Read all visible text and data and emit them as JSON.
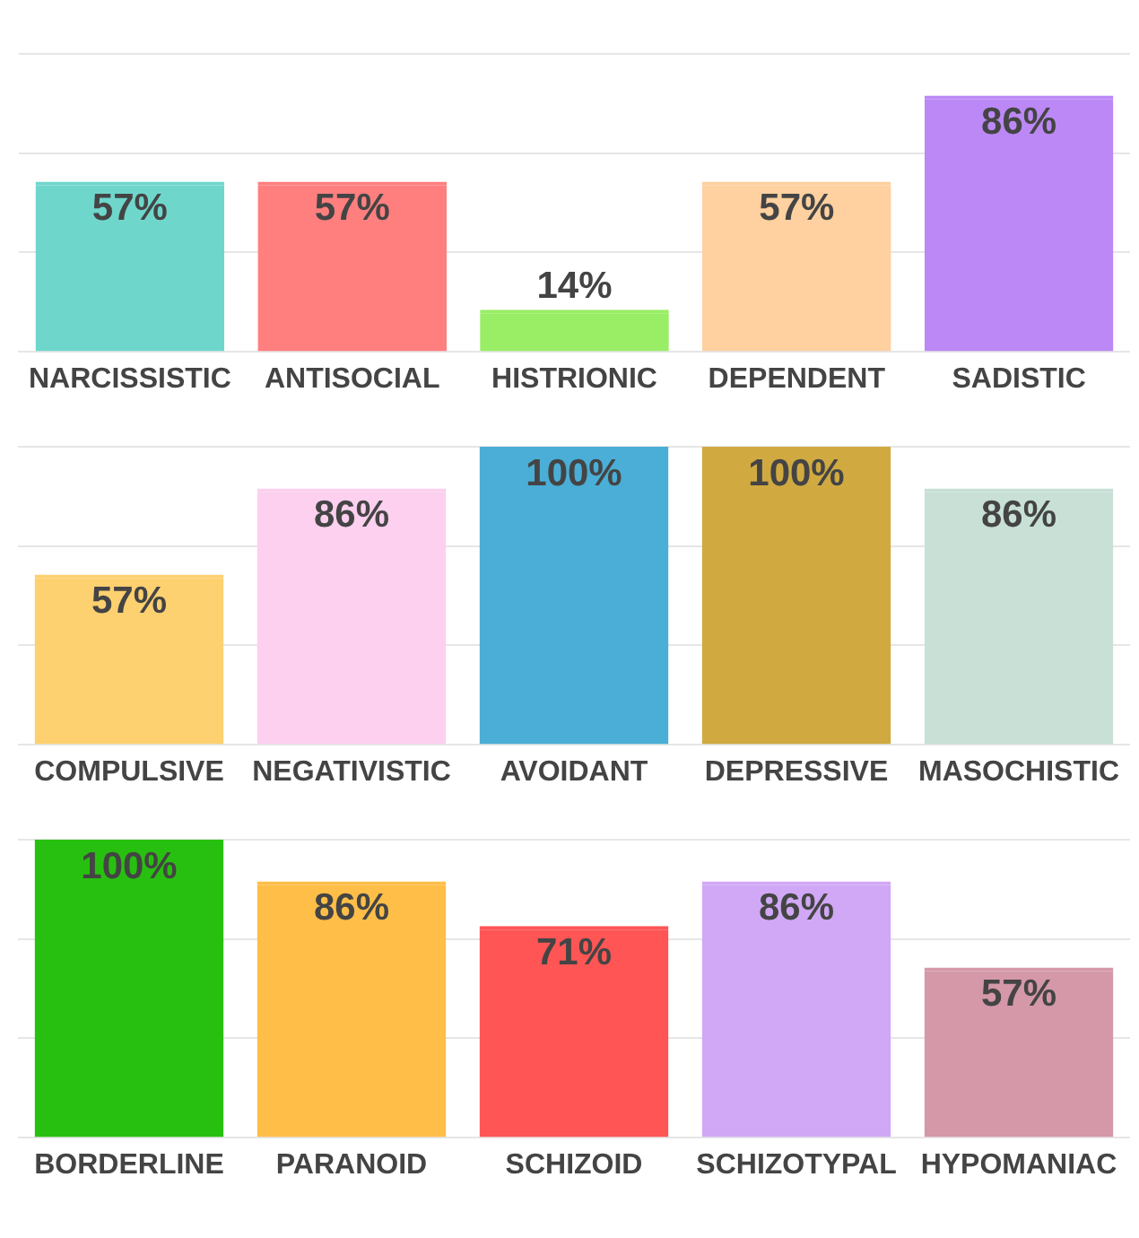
{
  "chart_data": [
    {
      "type": "bar",
      "categories": [
        "NARCISSISTIC",
        "ANTISOCIAL",
        "HISTRIONIC",
        "DEPENDENT",
        "SADISTIC"
      ],
      "values": [
        57,
        57,
        14,
        57,
        86
      ],
      "value_labels": [
        "57%",
        "57%",
        "14%",
        "57%",
        "86%"
      ],
      "colors": [
        "#6fd6cc",
        "#ff7f7f",
        "#99ee66",
        "#ffd0a0",
        "#bb88f5"
      ],
      "ylim": [
        0,
        100
      ],
      "yticks": [
        {
          "value": 33.33,
          "label": null
        },
        {
          "value": 66.67,
          "label": null
        },
        {
          "value": 100,
          "label": null
        }
      ],
      "tick_labels": "x",
      "grid": "y"
    },
    {
      "type": "bar",
      "categories": [
        "COMPULSIVE",
        "NEGATIVISTIC",
        "AVOIDANT",
        "DEPRESSIVE",
        "MASOCHISTIC"
      ],
      "values": [
        57,
        86,
        100,
        100,
        86
      ],
      "value_labels": [
        "57%",
        "86%",
        "100%",
        "100%",
        "86%"
      ],
      "colors": [
        "#fdd070",
        "#fcd0ee",
        "#4aaed6",
        "#d0aa40",
        "#c8e0d6"
      ],
      "ylim": [
        0,
        100
      ],
      "yticks": [
        {
          "value": 33.33,
          "label": null
        },
        {
          "value": 66.67,
          "label": null
        },
        {
          "value": 100,
          "label": null
        }
      ],
      "tick_labels": "x",
      "grid": "y"
    },
    {
      "type": "bar",
      "categories": [
        "BORDERLINE",
        "PARANOID",
        "SCHIZOID",
        "SCHIZOTYPAL",
        "HYPOMANIAC"
      ],
      "values": [
        100,
        86,
        71,
        86,
        57
      ],
      "value_labels": [
        "100%",
        "86%",
        "71%",
        "86%",
        "57%"
      ],
      "colors": [
        "#28c010",
        "#ffbe48",
        "#ff5555",
        "#d0a8f5",
        "#d498a8"
      ],
      "ylim": [
        0,
        100
      ],
      "yticks": [
        {
          "value": 33.33,
          "label": null
        },
        {
          "value": 66.67,
          "label": null
        },
        {
          "value": 100,
          "label": null
        }
      ],
      "tick_labels": "x",
      "grid": "y"
    }
  ]
}
